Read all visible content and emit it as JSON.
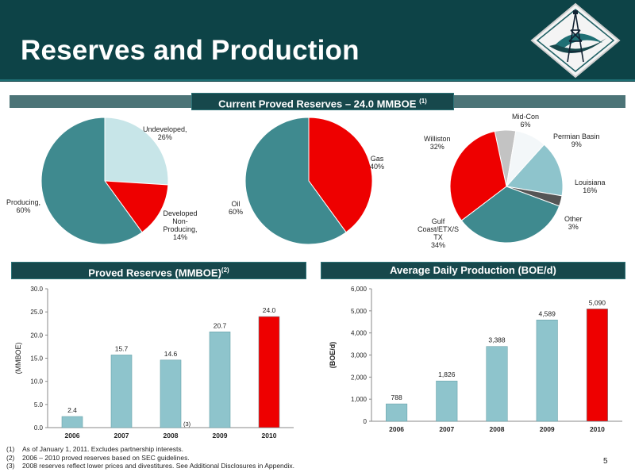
{
  "title": "Reserves and Production",
  "page_number": "5",
  "colors": {
    "header_bg": "#0d4347",
    "teal": "#3f8a8f",
    "light_teal": "#8ec4cc",
    "pale_teal": "#c7e5e8",
    "red": "#ee0000",
    "gray": "#c3c3c3",
    "white_slice": "#f3f7f9",
    "dark_gray": "#555555"
  },
  "reserves_banner": {
    "text": "Current Proved Reserves – 24.0 MMBOE",
    "sup": "(1)"
  },
  "proved_banner": {
    "text": "Proved Reserves (MMBOE)",
    "sup": "(2)"
  },
  "production_banner": {
    "text": "Average Daily Production (BOE/d)"
  },
  "footnotes": [
    {
      "num": "(1)",
      "text": "As of  January 1, 2011. Excludes partnership interests."
    },
    {
      "num": "(2)",
      "text": "2006 – 2010 proved reserves based on SEC guidelines."
    },
    {
      "num": "(3)",
      "text": "2008 reserves reflect lower prices and divestitures.  See Additional Disclosures in Appendix."
    }
  ],
  "chart_data": [
    {
      "type": "pie",
      "slices": [
        {
          "label": "Undeveloped,",
          "sublabel": "26%",
          "value": 26,
          "color": "#c7e5e8"
        },
        {
          "label": "Developed Non-Producing,",
          "sublabel": "14%",
          "value": 14,
          "color": "#ee0000"
        },
        {
          "label": "Producing,",
          "sublabel": "60%",
          "value": 60,
          "color": "#3f8a8f"
        }
      ]
    },
    {
      "type": "pie",
      "slices": [
        {
          "label": "Gas",
          "sublabel": "40%",
          "value": 40,
          "color": "#ee0000"
        },
        {
          "label": "Oil",
          "sublabel": "60%",
          "value": 60,
          "color": "#3f8a8f"
        }
      ]
    },
    {
      "type": "pie",
      "slices": [
        {
          "label": "Mid-Con",
          "sublabel": "6%",
          "value": 6,
          "color": "#c3c3c3"
        },
        {
          "label": "Permian Basin",
          "sublabel": "9%",
          "value": 9,
          "color": "#f3f7f9"
        },
        {
          "label": "Louisiana",
          "sublabel": "16%",
          "value": 16,
          "color": "#8ec4cc"
        },
        {
          "label": "Other",
          "sublabel": "3%",
          "value": 3,
          "color": "#555555"
        },
        {
          "label": "Gulf Coast/ETX/S TX",
          "sublabel": "34%",
          "value": 34,
          "color": "#3f8a8f"
        },
        {
          "label": "Williston",
          "sublabel": "32%",
          "value": 32,
          "color": "#ee0000"
        }
      ]
    },
    {
      "type": "bar",
      "categories": [
        "2006",
        "2007",
        "2008",
        "2009",
        "2010"
      ],
      "values": [
        2.4,
        15.7,
        14.6,
        20.7,
        24.0
      ],
      "value_labels": [
        "2.4",
        "15.7",
        "14.6",
        "20.7",
        "24.0"
      ],
      "ylabel": "(MMBOE)",
      "ylim": [
        0,
        30
      ],
      "yticks": [
        "0.0",
        "5.0",
        "10.0",
        "15.0",
        "20.0",
        "25.0",
        "30.0"
      ],
      "annotation": {
        "category": "2008",
        "text": "(3)"
      },
      "grid": false
    },
    {
      "type": "bar",
      "categories": [
        "2006",
        "2007",
        "2008",
        "2009",
        "2010"
      ],
      "values": [
        788,
        1826,
        3388,
        4589,
        5090
      ],
      "value_labels": [
        "788",
        "1,826",
        "3,388",
        "4,589",
        "5,090"
      ],
      "ylabel": "(BOE/d)",
      "ylim": [
        0,
        6000
      ],
      "yticks": [
        "0",
        "1,000",
        "2,000",
        "3,000",
        "4,000",
        "5,000",
        "6,000"
      ],
      "grid": false
    }
  ]
}
